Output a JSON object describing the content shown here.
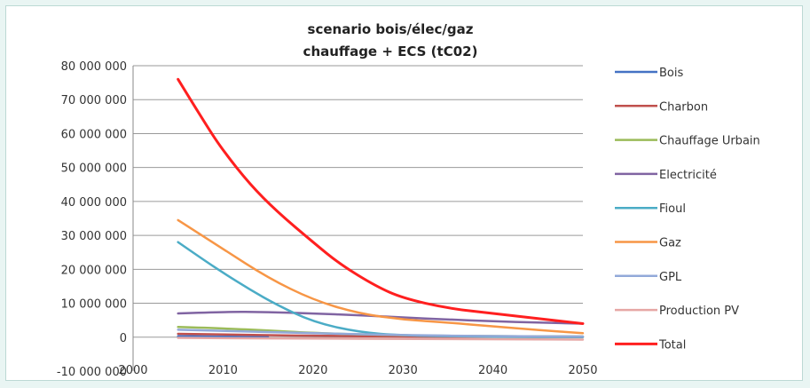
{
  "chart_data": {
    "type": "line",
    "title_lines": [
      "scenario bois/élec/gaz",
      "chauffage + ECS (tC02)"
    ],
    "xlim": [
      2000,
      2050
    ],
    "ylim": [
      -10000000,
      80000000
    ],
    "x_ticks": [
      "2000",
      "2010",
      "2020",
      "2030",
      "2040",
      "2050"
    ],
    "y_ticks": [
      "80 000 000",
      "70 000 000",
      "60 000 000",
      "50 000 000",
      "40 000 000",
      "30 000 000",
      "20 000 000",
      "10 000 000",
      "0",
      "-10 000 000"
    ],
    "grid": true,
    "legend_position": "right",
    "series": [
      {
        "name": "Bois",
        "color": "#4472c4",
        "x": [
          2005,
          2010,
          2015
        ],
        "values": [
          300000,
          150000,
          50000
        ]
      },
      {
        "name": "Charbon",
        "color": "#c0504d",
        "x": [
          2005,
          2010,
          2015,
          2020,
          2030,
          2040,
          2050
        ],
        "values": [
          1000000,
          800000,
          600000,
          400000,
          200000,
          100000,
          50000
        ]
      },
      {
        "name": "Chauffage Urbain",
        "color": "#9bbb59",
        "x": [
          2005,
          2010,
          2015,
          2020,
          2030,
          2040,
          2050
        ],
        "values": [
          3000000,
          2600000,
          2000000,
          1200000,
          500000,
          300000,
          200000
        ]
      },
      {
        "name": "Electricité",
        "color": "#8064a2",
        "x": [
          2005,
          2010,
          2015,
          2020,
          2025,
          2030,
          2035,
          2040,
          2045,
          2050
        ],
        "values": [
          7000000,
          7500000,
          7400000,
          7000000,
          6500000,
          5800000,
          5200000,
          4700000,
          4300000,
          4000000
        ]
      },
      {
        "name": "Fioul",
        "color": "#4bacc6",
        "x": [
          2005,
          2008,
          2010,
          2013,
          2016,
          2020,
          2025,
          2030,
          2040,
          2050
        ],
        "values": [
          28000000,
          22500000,
          19000000,
          14000000,
          9500000,
          4500000,
          1500000,
          500000,
          100000,
          50000
        ]
      },
      {
        "name": "Gaz",
        "color": "#f79646",
        "x": [
          2005,
          2010,
          2015,
          2020,
          2025,
          2030,
          2035,
          2040,
          2045,
          2050
        ],
        "values": [
          34500000,
          26000000,
          17500000,
          11000000,
          7000000,
          5200000,
          4300000,
          3200000,
          2100000,
          1200000
        ]
      },
      {
        "name": "GPL",
        "color": "#92a9d9",
        "x": [
          2005,
          2010,
          2020,
          2030,
          2040,
          2050
        ],
        "values": [
          2200000,
          1800000,
          1200000,
          600000,
          300000,
          200000
        ]
      },
      {
        "name": "Production PV",
        "color": "#e6a7a5",
        "x": [
          2005,
          2010,
          2020,
          2030,
          2040,
          2050
        ],
        "values": [
          -200000,
          -300000,
          -400000,
          -500000,
          -600000,
          -700000
        ]
      },
      {
        "name": "Total",
        "color": "#ff1f1f",
        "x": [
          2005,
          2008,
          2010,
          2013,
          2016,
          2020,
          2023,
          2027,
          2030,
          2035,
          2040,
          2045,
          2050
        ],
        "values": [
          76000000,
          63000000,
          55000000,
          45000000,
          37000000,
          28000000,
          21500000,
          15000000,
          11500000,
          8500000,
          7000000,
          5500000,
          4000000
        ],
        "width": 3
      }
    ]
  }
}
